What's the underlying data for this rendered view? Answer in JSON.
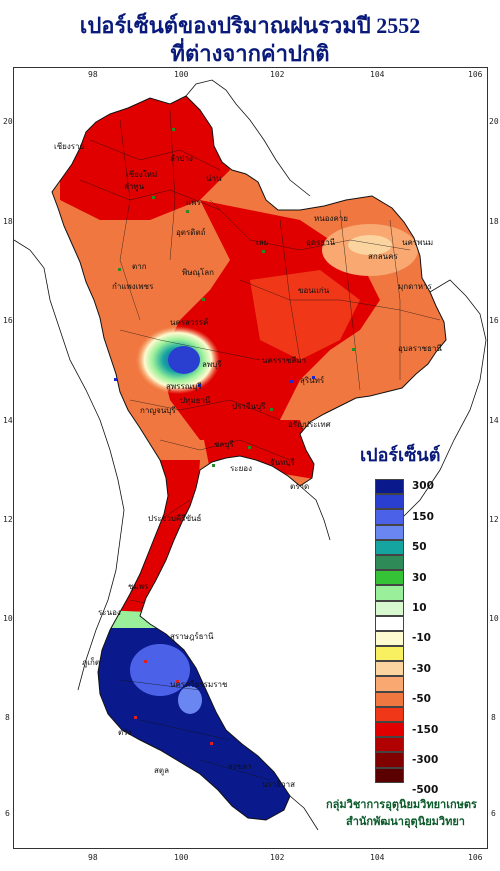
{
  "title": {
    "line1": "เปอร์เซ็นต์ของปริมาณฝนรวมปี 2552",
    "line2": "ที่ต่างจากค่าปกติ"
  },
  "axes": {
    "top_longitudes": [
      "98",
      "100",
      "102",
      "104",
      "106"
    ],
    "bottom_longitudes": [
      "98",
      "100",
      "102",
      "104",
      "106"
    ],
    "left_latitudes": [
      "20",
      "18",
      "16",
      "14",
      "12",
      "10",
      "8",
      "6"
    ],
    "right_latitudes": [
      "20",
      "18",
      "16",
      "14",
      "12",
      "10",
      "8",
      "6"
    ]
  },
  "legend": {
    "title": "เปอร์เซ็นต์",
    "colors": [
      "#0a1a8c",
      "#2a3fd0",
      "#4b62e8",
      "#6a86f0",
      "#16a4a0",
      "#2e8b57",
      "#36c236",
      "#9af09a",
      "#d8f8d0",
      "#ffffff",
      "#fffbd0",
      "#f8f060",
      "#fbd4a0",
      "#f8a870",
      "#f07840",
      "#f03818",
      "#e00000",
      "#b00000",
      "#800000",
      "#5a0000"
    ],
    "labels": [
      "300",
      "150",
      "50",
      "30",
      "10",
      "-10",
      "-30",
      "-50",
      "-150",
      "-300",
      "-500"
    ]
  },
  "credit": {
    "line1": "กลุ่มวิชาการอุตุนิยมวิทยาเกษตร",
    "line2": "สำนักพัฒนาอุตุนิยมวิทยา"
  },
  "places": [
    "เชียงราย",
    "เชียงใหม่",
    "ลำพูน",
    "ลำปาง",
    "น่าน",
    "แพร่",
    "อุตรดิตถ์",
    "ตาก",
    "กำแพงเพชร",
    "พิษณุโลก",
    "หนองคาย",
    "อุดรธานี",
    "สกลนคร",
    "นครพนม",
    "มุกดาหาร",
    "เลย",
    "ขอนแก่น",
    "นครสวรรค์",
    "ลพบุรี",
    "อุบลราชธานี",
    "นครราชสีมา",
    "สุรินทร์",
    "สุพรรณบุรี",
    "กาญจนบุรี",
    "ปทุมธานี",
    "ปราจีนบุรี",
    "อรัญประเทศ",
    "ชลบุรี",
    "ระยอง",
    "จันทบุรี",
    "ตราด",
    "ประจวบคีรีขันธ์",
    "ชุมพร",
    "ระนอง",
    "สุราษฎร์ธานี",
    "นครศรีธรรมราช",
    "ภูเก็ต",
    "ตรัง",
    "สตูล",
    "สงขลา",
    "นราธิวาส"
  ]
}
